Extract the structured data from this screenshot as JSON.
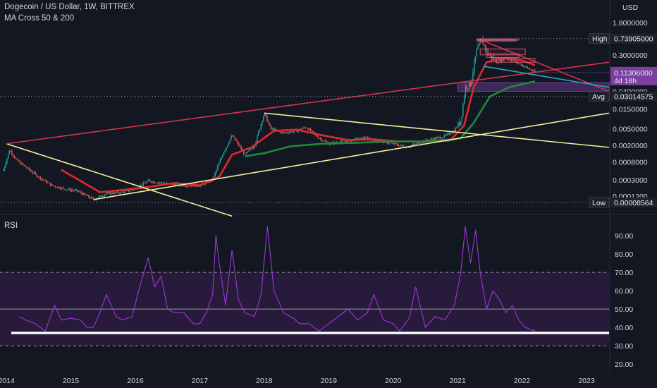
{
  "header": {
    "title": "Dogecoin / US Dollar, 1W, BITTREX",
    "indicator": "MA Cross 50 & 200"
  },
  "rsi_panel": {
    "label": "RSI"
  },
  "colors": {
    "background": "#131722",
    "candle_up": "#26a69a",
    "candle_down": "#ef5350",
    "ma_fast": "#e0282e",
    "ma_slow": "#1f8a3a",
    "trend_yellow": "#f4ec9c",
    "trend_red": "#d6344b",
    "trend_cyan": "#2aa8b8",
    "rsi_line": "#a236d9",
    "rsi_band": "#2a1b3d",
    "support_line": "#ffffff"
  },
  "chart_data": [
    {
      "type": "candlestick",
      "title": "Dogecoin / US Dollar, 1W, BITTREX",
      "y_scale": "log",
      "y_unit": "USD",
      "x_ticks": [
        "2014",
        "2015",
        "2016",
        "2017",
        "2018",
        "2019",
        "2020",
        "2021",
        "2022",
        "2023"
      ],
      "y_ticks": [
        "1.8000000",
        "0.3000000",
        "0.0400000",
        "0.0150000",
        "0.0050000",
        "0.0020000",
        "0.0008000",
        "0.0003000",
        "0.0001200"
      ],
      "y_ticks_numeric": [
        1.8,
        0.3,
        0.04,
        0.015,
        0.005,
        0.002,
        0.0008,
        0.0003,
        0.00012
      ],
      "ylim": [
        6e-05,
        2.1
      ],
      "xlim": [
        2013.9,
        2023.35
      ],
      "price_path": [
        [
          2013.95,
          0.0005
        ],
        [
          2014.05,
          0.0016
        ],
        [
          2014.15,
          0.0009
        ],
        [
          2014.3,
          0.0006
        ],
        [
          2014.5,
          0.00035
        ],
        [
          2014.7,
          0.00022
        ],
        [
          2014.9,
          0.00018
        ],
        [
          2015.1,
          0.00016
        ],
        [
          2015.35,
          0.0001
        ],
        [
          2015.55,
          0.00014
        ],
        [
          2015.8,
          0.00015
        ],
        [
          2016.0,
          0.00018
        ],
        [
          2016.2,
          0.00028
        ],
        [
          2016.5,
          0.00024
        ],
        [
          2016.8,
          0.00022
        ],
        [
          2017.0,
          0.00022
        ],
        [
          2017.2,
          0.0003
        ],
        [
          2017.35,
          0.0012
        ],
        [
          2017.5,
          0.0035
        ],
        [
          2017.7,
          0.0012
        ],
        [
          2017.85,
          0.002
        ],
        [
          2018.0,
          0.012
        ],
        [
          2018.1,
          0.005
        ],
        [
          2018.3,
          0.004
        ],
        [
          2018.5,
          0.0045
        ],
        [
          2018.65,
          0.0055
        ],
        [
          2018.85,
          0.003
        ],
        [
          2019.0,
          0.0022
        ],
        [
          2019.3,
          0.0026
        ],
        [
          2019.55,
          0.003
        ],
        [
          2019.8,
          0.0025
        ],
        [
          2020.0,
          0.0022
        ],
        [
          2020.2,
          0.0018
        ],
        [
          2020.5,
          0.0026
        ],
        [
          2020.8,
          0.0033
        ],
        [
          2020.95,
          0.0045
        ],
        [
          2021.05,
          0.008
        ],
        [
          2021.12,
          0.05
        ],
        [
          2021.2,
          0.06
        ],
        [
          2021.3,
          0.4
        ],
        [
          2021.38,
          0.65
        ],
        [
          2021.48,
          0.3
        ],
        [
          2021.6,
          0.2
        ],
        [
          2021.75,
          0.25
        ],
        [
          2021.9,
          0.2
        ],
        [
          2022.0,
          0.17
        ],
        [
          2022.1,
          0.14
        ],
        [
          2022.2,
          0.113
        ]
      ],
      "ma_cross": [
        {
          "name": "MA 50",
          "color": "#e0282e",
          "points": [
            [
              2014.85,
              0.00052
            ],
            [
              2015.15,
              0.00028
            ],
            [
              2015.45,
              0.00015
            ],
            [
              2015.8,
              0.00017
            ],
            [
              2016.2,
              0.0002
            ],
            [
              2016.6,
              0.00025
            ],
            [
              2017.0,
              0.00022
            ],
            [
              2017.3,
              0.00035
            ],
            [
              2017.5,
              0.0012
            ],
            [
              2017.8,
              0.0018
            ],
            [
              2018.15,
              0.0045
            ],
            [
              2018.5,
              0.0048
            ],
            [
              2018.9,
              0.0035
            ],
            [
              2019.3,
              0.0027
            ],
            [
              2019.7,
              0.0028
            ],
            [
              2020.1,
              0.0025
            ],
            [
              2020.5,
              0.0025
            ],
            [
              2020.9,
              0.0028
            ],
            [
              2021.1,
              0.006
            ],
            [
              2021.25,
              0.05
            ],
            [
              2021.45,
              0.2
            ],
            [
              2021.7,
              0.25
            ],
            [
              2022.0,
              0.22
            ],
            [
              2022.2,
              0.17
            ]
          ]
        },
        {
          "name": "MA 200",
          "color": "#1f8a3a",
          "points": [
            [
              2017.7,
              0.0011
            ],
            [
              2018.0,
              0.0013
            ],
            [
              2018.4,
              0.0019
            ],
            [
              2018.9,
              0.0022
            ],
            [
              2019.4,
              0.0023
            ],
            [
              2019.9,
              0.0025
            ],
            [
              2020.4,
              0.0025
            ],
            [
              2020.85,
              0.0026
            ],
            [
              2021.05,
              0.003
            ],
            [
              2021.25,
              0.007
            ],
            [
              2021.5,
              0.03
            ],
            [
              2021.8,
              0.05
            ],
            [
              2022.2,
              0.07
            ]
          ]
        }
      ],
      "trendlines": [
        {
          "color": "#f4ec9c",
          "from": [
            2014.0,
            0.0022
          ],
          "to": [
            2017.5,
            4e-05
          ]
        },
        {
          "color": "#f4ec9c",
          "from": [
            2015.35,
            0.0001
          ],
          "to": [
            2023.35,
            0.012
          ]
        },
        {
          "color": "#f4ec9c",
          "from": [
            2018.0,
            0.012
          ],
          "to": [
            2023.35,
            0.0018
          ]
        },
        {
          "color": "#d6344b",
          "from": [
            2014.0,
            0.0022
          ],
          "to": [
            2023.35,
            0.2
          ]
        },
        {
          "color": "#d6344b",
          "from": [
            2021.35,
            0.7
          ],
          "to": [
            2023.35,
            0.04
          ]
        },
        {
          "color": "#2aa8b8",
          "from": [
            2021.4,
            0.16
          ],
          "to": [
            2023.35,
            0.05
          ]
        }
      ],
      "zones": [
        {
          "color": "#7b3fa0",
          "from": [
            2021.0,
            0.065
          ],
          "to": [
            2023.35,
            0.04
          ]
        }
      ],
      "price_tags": [
        {
          "label": "High",
          "value": "0.73905000"
        },
        {
          "label": "",
          "value": "0.11306000",
          "sub": "4d 18h"
        },
        {
          "label": "Avg",
          "value": "0.03014575"
        },
        {
          "label": "Low",
          "value": "0.00008564"
        }
      ],
      "axis_unit_label": "USD"
    },
    {
      "type": "line",
      "title": "RSI",
      "y_ticks": [
        90,
        80,
        70,
        60,
        50,
        40,
        30,
        20
      ],
      "ylim": [
        17,
        100
      ],
      "band": [
        30,
        70
      ],
      "midline": 50,
      "support_level": 37,
      "series": [
        {
          "color": "#a236d9",
          "x": [
            2014.2,
            2014.3,
            2014.45,
            2014.6,
            2014.75,
            2014.85,
            2015.0,
            2015.15,
            2015.25,
            2015.35,
            2015.45,
            2015.55,
            2015.7,
            2015.8,
            2015.95,
            2016.05,
            2016.2,
            2016.3,
            2016.4,
            2016.5,
            2016.6,
            2016.75,
            2016.9,
            2017.0,
            2017.1,
            2017.2,
            2017.25,
            2017.3,
            2017.4,
            2017.5,
            2017.6,
            2017.7,
            2017.85,
            2017.95,
            2018.05,
            2018.15,
            2018.3,
            2018.45,
            2018.55,
            2018.7,
            2018.85,
            2019.0,
            2019.15,
            2019.3,
            2019.45,
            2019.6,
            2019.7,
            2019.85,
            2020.0,
            2020.1,
            2020.25,
            2020.35,
            2020.5,
            2020.65,
            2020.8,
            2020.95,
            2021.05,
            2021.12,
            2021.2,
            2021.28,
            2021.35,
            2021.45,
            2021.55,
            2021.65,
            2021.75,
            2021.85,
            2021.95,
            2022.05,
            2022.2
          ],
          "values": [
            46,
            44,
            42,
            38,
            52,
            44,
            45,
            44,
            40,
            40,
            48,
            58,
            46,
            44,
            46,
            60,
            78,
            62,
            68,
            50,
            48,
            48,
            42,
            42,
            48,
            58,
            90,
            75,
            52,
            82,
            55,
            48,
            46,
            58,
            95,
            60,
            48,
            45,
            42,
            42,
            38,
            42,
            46,
            50,
            44,
            48,
            58,
            44,
            42,
            38,
            45,
            62,
            40,
            46,
            44,
            52,
            70,
            95,
            75,
            93,
            70,
            50,
            60,
            55,
            48,
            52,
            44,
            40,
            38
          ]
        }
      ]
    }
  ]
}
